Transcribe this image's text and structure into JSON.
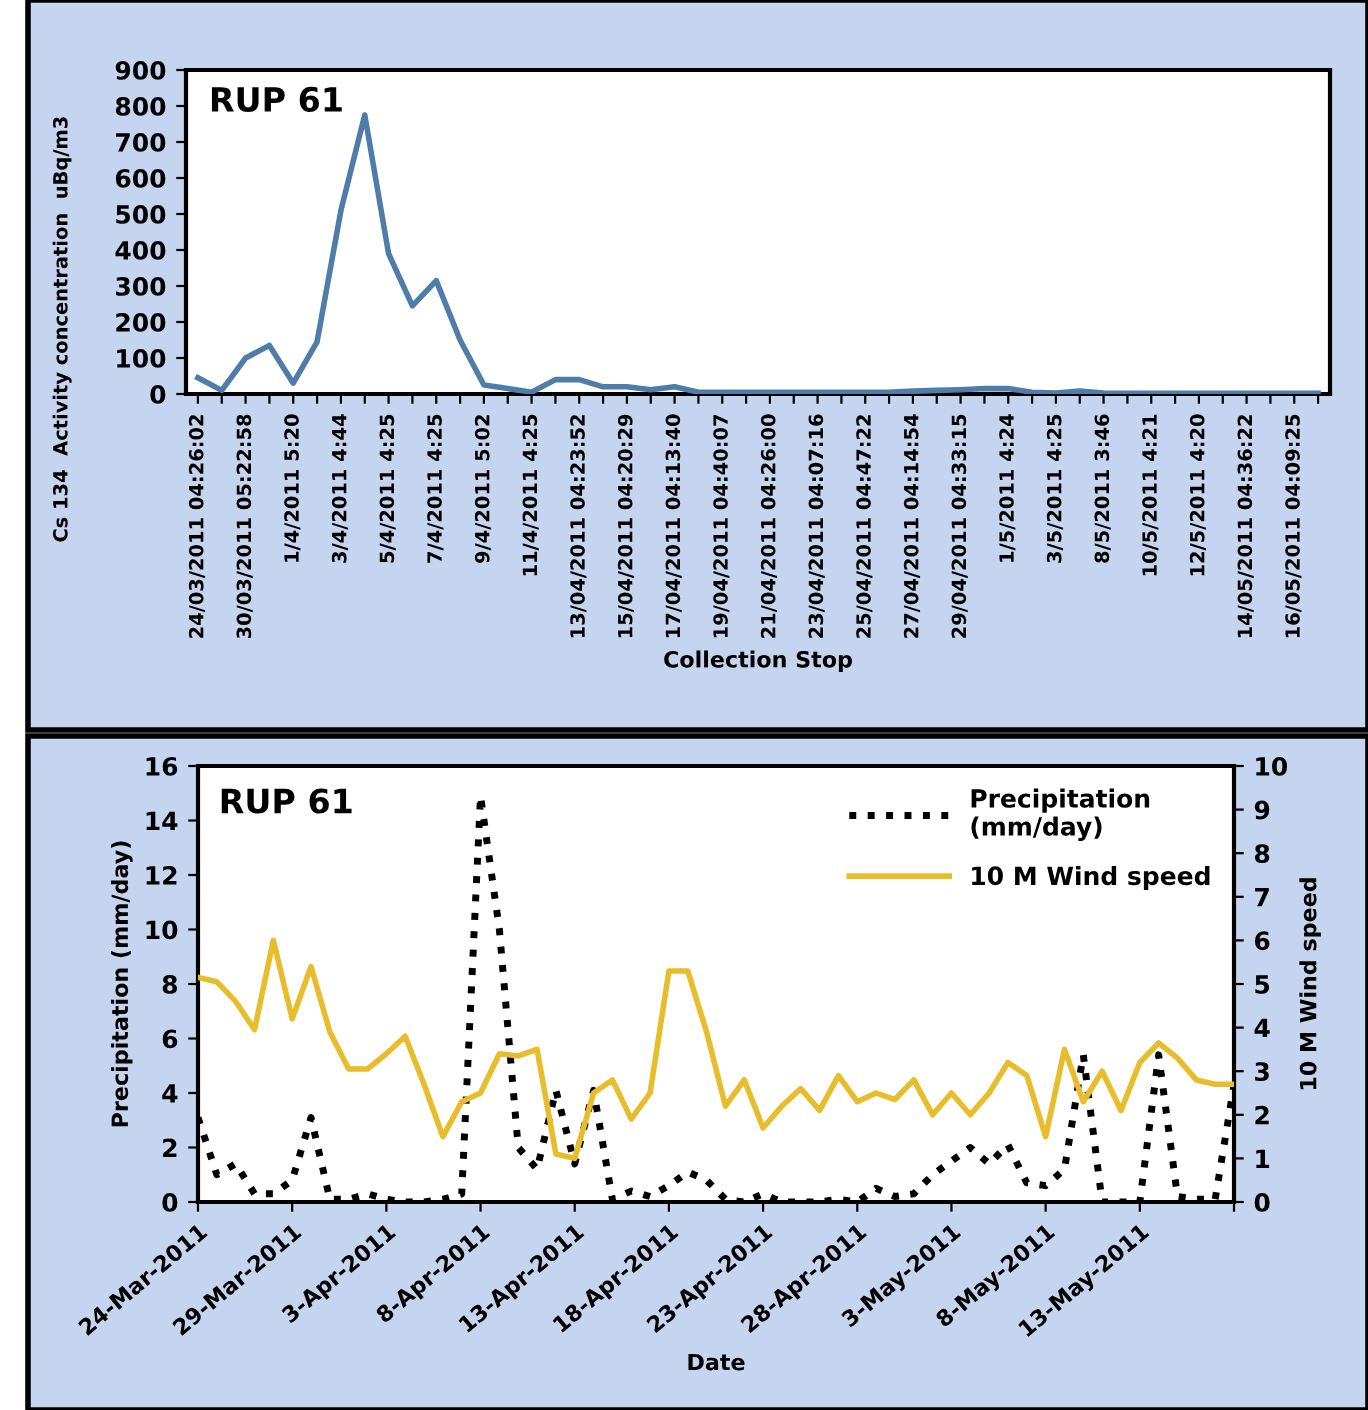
{
  "chart_data": [
    {
      "type": "line",
      "title": "RUP 61",
      "xlabel": "Collection Stop",
      "ylabel": "Cs 134  Activity concentration  uBq/m3",
      "categories": [
        "24/03/2011 04:26:02",
        null,
        "30/03/2011 05:22:58",
        null,
        "1/4/2011 5:20",
        null,
        "3/4/2011 4:44",
        null,
        "5/4/2011 4:25",
        null,
        "7/4/2011 4:25",
        null,
        "9/4/2011 5:02",
        null,
        "11/4/2011 4:25",
        null,
        "13/04/2011 04:23:52",
        null,
        "15/04/2011 04:20:29",
        null,
        "17/04/2011 04:13:40",
        null,
        "19/04/2011 04:40:07",
        null,
        "21/04/2011 04:26:00",
        null,
        "23/04/2011 04:07:16",
        null,
        "25/04/2011 04:47:22",
        null,
        "27/04/2011 04:14:54",
        null,
        "29/04/2011 04:33:15",
        null,
        "1/5/2011 4:24",
        null,
        "3/5/2011 4:25",
        null,
        "8/5/2011 3:46",
        null,
        "10/5/2011 4:21",
        null,
        "12/5/2011 4:20",
        null,
        "14/05/2011 04:36:22",
        null,
        "16/05/2011 04:09:25",
        null
      ],
      "series": [
        {
          "color": "#4f7ca8",
          "values": [
            45,
            10,
            100,
            135,
            30,
            145,
            510,
            775,
            390,
            245,
            315,
            150,
            25,
            15,
            5,
            40,
            40,
            20,
            20,
            12,
            20,
            5,
            5,
            5,
            5,
            5,
            5,
            5,
            5,
            5,
            8,
            10,
            12,
            15,
            15,
            5,
            3,
            8,
            3,
            2,
            2,
            2,
            2,
            2,
            2,
            2,
            2,
            2
          ]
        }
      ],
      "ylim": [
        0,
        900
      ],
      "yticks": [
        0,
        100,
        200,
        300,
        400,
        500,
        600,
        700,
        800,
        900
      ],
      "grid": false,
      "legend": false,
      "line_style": "solid",
      "marker": "none"
    },
    {
      "type": "line",
      "title": "RUP 61",
      "xlabel": "Date",
      "ylabel": "Precipitation (mm/day)",
      "y2label": "10 M Wind speed",
      "x": [
        "2011-03-24",
        "2011-03-25",
        "2011-03-26",
        "2011-03-27",
        "2011-03-28",
        "2011-03-29",
        "2011-03-30",
        "2011-03-31",
        "2011-04-01",
        "2011-04-02",
        "2011-04-03",
        "2011-04-04",
        "2011-04-05",
        "2011-04-06",
        "2011-04-07",
        "2011-04-08",
        "2011-04-09",
        "2011-04-10",
        "2011-04-11",
        "2011-04-12",
        "2011-04-13",
        "2011-04-14",
        "2011-04-15",
        "2011-04-16",
        "2011-04-17",
        "2011-04-18",
        "2011-04-19",
        "2011-04-20",
        "2011-04-21",
        "2011-04-22",
        "2011-04-23",
        "2011-04-24",
        "2011-04-25",
        "2011-04-26",
        "2011-04-27",
        "2011-04-28",
        "2011-04-29",
        "2011-04-30",
        "2011-05-01",
        "2011-05-02",
        "2011-05-03",
        "2011-05-04",
        "2011-05-05",
        "2011-05-06",
        "2011-05-07",
        "2011-05-08",
        "2011-05-09",
        "2011-05-10",
        "2011-05-11",
        "2011-05-12",
        "2011-05-13",
        "2011-05-14",
        "2011-05-15",
        "2011-05-16",
        "2011-05-17",
        "2011-05-18"
      ],
      "series": [
        {
          "name": "Precipitation\n(mm/day)",
          "color": "#000000",
          "line_style": "dotted",
          "values": [
            3.1,
            1.0,
            1.4,
            0.3,
            0.3,
            0.8,
            3.1,
            0.1,
            0.1,
            0.3,
            0.1,
            0,
            0,
            0.1,
            0.3,
            14.9,
            10,
            2,
            1.2,
            4.1,
            1.4,
            4.1,
            0.1,
            0.4,
            0.2,
            0.6,
            1.1,
            0.8,
            0.1,
            0,
            0.3,
            0,
            0,
            0,
            0.1,
            0,
            0.5,
            0.2,
            0.3,
            1.0,
            1.5,
            2.0,
            1.4,
            2.1,
            0.7,
            0.6,
            1.2,
            5.4,
            0,
            0,
            0,
            5.4,
            0.2,
            0.1,
            0.1,
            4.3
          ]
        },
        {
          "name": "10 M Wind speed",
          "color": "#e8bd2c",
          "line_style": "solid",
          "axis": "y2",
          "values": [
            5.15,
            5.05,
            4.6,
            3.95,
            6.0,
            4.2,
            5.4,
            3.9,
            3.05,
            3.05,
            3.4,
            3.8,
            2.7,
            1.5,
            2.3,
            2.5,
            3.4,
            3.35,
            3.5,
            1.1,
            1.0,
            2.5,
            2.8,
            1.9,
            2.5,
            5.3,
            5.3,
            3.9,
            2.2,
            2.8,
            1.7,
            2.2,
            2.6,
            2.1,
            2.9,
            2.3,
            2.5,
            2.35,
            2.8,
            2.0,
            2.5,
            2.0,
            2.5,
            3.2,
            2.9,
            1.5,
            3.5,
            2.3,
            3.0,
            2.1,
            3.2,
            3.65,
            3.3,
            2.8,
            2.7,
            2.7
          ]
        }
      ],
      "xlim": [
        "2011-03-24",
        "2011-05-18"
      ],
      "xticks": [
        {
          "value": "2011-03-24",
          "label": "24-Mar-2011"
        },
        {
          "value": "2011-03-29",
          "label": "29-Mar-2011"
        },
        {
          "value": "2011-04-03",
          "label": "3-Apr-2011"
        },
        {
          "value": "2011-04-08",
          "label": "8-Apr-2011"
        },
        {
          "value": "2011-04-13",
          "label": "13-Apr-2011"
        },
        {
          "value": "2011-04-18",
          "label": "18-Apr-2011"
        },
        {
          "value": "2011-04-23",
          "label": "23-Apr-2011"
        },
        {
          "value": "2011-04-28",
          "label": "28-Apr-2011"
        },
        {
          "value": "2011-05-03",
          "label": "3-May-2011"
        },
        {
          "value": "2011-05-08",
          "label": "8-May-2011"
        },
        {
          "value": "2011-05-13",
          "label": "13-May-2011"
        },
        {
          "value": "2011-05-18",
          "label": null
        }
      ],
      "ylim": [
        0,
        16
      ],
      "yticks": [
        0,
        2,
        4,
        6,
        8,
        10,
        12,
        14,
        16
      ],
      "y2lim": [
        0,
        10
      ],
      "y2ticks": [
        0,
        1,
        2,
        3,
        4,
        5,
        6,
        7,
        8,
        9,
        10
      ],
      "grid": false,
      "legend": "top right",
      "marker": "none"
    }
  ]
}
